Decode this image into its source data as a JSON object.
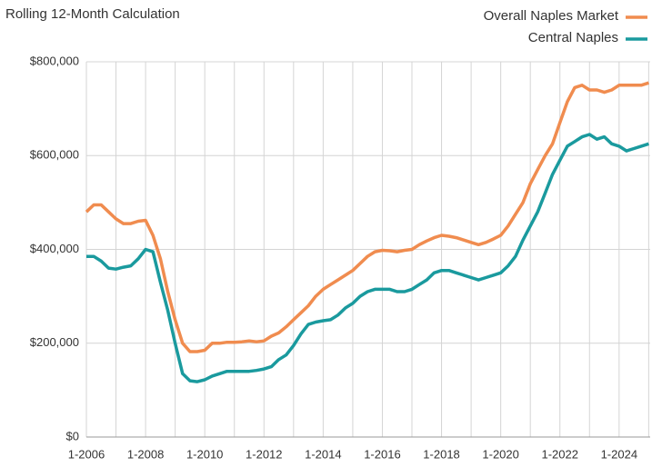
{
  "chart_data": {
    "type": "line",
    "subtitle": "Rolling 12-Month Calculation",
    "x": [
      2006,
      2006.25,
      2006.5,
      2006.75,
      2007,
      2007.25,
      2007.5,
      2007.75,
      2008,
      2008.25,
      2008.5,
      2008.75,
      2009,
      2009.25,
      2009.5,
      2009.75,
      2010,
      2010.25,
      2010.5,
      2010.75,
      2011,
      2011.25,
      2011.5,
      2011.75,
      2012,
      2012.25,
      2012.5,
      2012.75,
      2013,
      2013.25,
      2013.5,
      2013.75,
      2014,
      2014.25,
      2014.5,
      2014.75,
      2015,
      2015.25,
      2015.5,
      2015.75,
      2016,
      2016.25,
      2016.5,
      2016.75,
      2017,
      2017.25,
      2017.5,
      2017.75,
      2018,
      2018.25,
      2018.5,
      2018.75,
      2019,
      2019.25,
      2019.5,
      2019.75,
      2020,
      2020.25,
      2020.5,
      2020.75,
      2021,
      2021.25,
      2021.5,
      2021.75,
      2022,
      2022.25,
      2022.5,
      2022.75,
      2023,
      2023.25,
      2023.5,
      2023.75,
      2024,
      2024.25,
      2024.5,
      2024.75,
      2025
    ],
    "series": [
      {
        "name": "Overall Naples Market",
        "color": "#f08c4f",
        "values": [
          480000,
          495000,
          495000,
          480000,
          465000,
          455000,
          455000,
          460000,
          462000,
          430000,
          380000,
          310000,
          250000,
          200000,
          182000,
          182000,
          185000,
          200000,
          200000,
          202000,
          202000,
          203000,
          205000,
          203000,
          205000,
          215000,
          222000,
          235000,
          250000,
          265000,
          280000,
          300000,
          315000,
          325000,
          335000,
          345000,
          355000,
          370000,
          385000,
          395000,
          398000,
          397000,
          395000,
          398000,
          400000,
          410000,
          418000,
          425000,
          430000,
          428000,
          425000,
          420000,
          415000,
          410000,
          415000,
          422000,
          430000,
          450000,
          475000,
          500000,
          540000,
          570000,
          600000,
          625000,
          670000,
          715000,
          745000,
          750000,
          740000,
          740000,
          735000,
          740000,
          750000,
          750000,
          750000,
          750000,
          755000
        ]
      },
      {
        "name": "Central Naples",
        "color": "#1a9a9e",
        "values": [
          385000,
          385000,
          375000,
          360000,
          358000,
          362000,
          365000,
          380000,
          400000,
          395000,
          330000,
          270000,
          200000,
          135000,
          120000,
          118000,
          122000,
          130000,
          135000,
          140000,
          140000,
          140000,
          140000,
          142000,
          145000,
          150000,
          165000,
          175000,
          195000,
          220000,
          240000,
          245000,
          248000,
          250000,
          260000,
          275000,
          285000,
          300000,
          310000,
          315000,
          315000,
          315000,
          310000,
          310000,
          315000,
          325000,
          335000,
          350000,
          355000,
          355000,
          350000,
          345000,
          340000,
          335000,
          340000,
          345000,
          350000,
          365000,
          385000,
          420000,
          450000,
          480000,
          520000,
          560000,
          590000,
          620000,
          630000,
          640000,
          645000,
          635000,
          640000,
          625000,
          620000,
          610000,
          615000,
          620000,
          625000
        ]
      }
    ],
    "xlim": [
      2006,
      2025.05
    ],
    "xticks": [
      {
        "value": 2006,
        "label": "1-2006"
      },
      {
        "value": 2008,
        "label": "1-2008"
      },
      {
        "value": 2010,
        "label": "1-2010"
      },
      {
        "value": 2012,
        "label": "1-2012"
      },
      {
        "value": 2014,
        "label": "1-2014"
      },
      {
        "value": 2016,
        "label": "1-2016"
      },
      {
        "value": 2018,
        "label": "1-2018"
      },
      {
        "value": 2020,
        "label": "1-2020"
      },
      {
        "value": 2022,
        "label": "1-2022"
      },
      {
        "value": 2024,
        "label": "1-2024"
      }
    ],
    "x_minor_grid": [
      2007,
      2009,
      2011,
      2013,
      2015,
      2017,
      2019,
      2021,
      2023,
      2025
    ],
    "ylim": [
      0,
      800000
    ],
    "yticks": [
      {
        "value": 0,
        "label": "$0"
      },
      {
        "value": 200000,
        "label": "$200,000"
      },
      {
        "value": 400000,
        "label": "$400,000"
      },
      {
        "value": 600000,
        "label": "$600,000"
      },
      {
        "value": 800000,
        "label": "$800,000"
      }
    ],
    "grid": true,
    "legend": "top-right"
  }
}
